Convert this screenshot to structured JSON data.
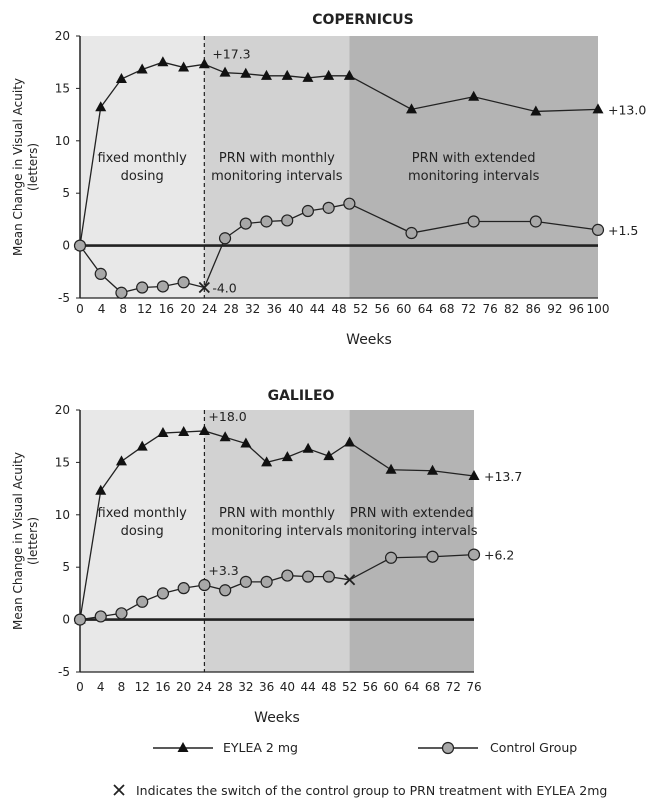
{
  "chart_data": [
    {
      "type": "line",
      "title": "COPERNICUS",
      "ylabel": "Mean Change in Visual Acuity",
      "ylabel2": "(letters)",
      "xlabel": "Weeks",
      "ylim": [
        -5,
        20
      ],
      "yticks": [
        "20",
        "15",
        "10",
        "5",
        "0",
        "-5"
      ],
      "xticks": [
        "0",
        "4",
        "8",
        "12",
        "16",
        "20",
        "24",
        "28",
        "32",
        "36",
        "40",
        "44",
        "48",
        "52",
        "56",
        "60",
        "64",
        "68",
        "72",
        "76",
        "82",
        "86",
        "92",
        "96",
        "100"
      ],
      "phases": [
        {
          "label1": "fixed monthly",
          "label2": "dosing",
          "x_start": 0,
          "x_end": 24,
          "color": "#e8e8e8"
        },
        {
          "label1": "PRN with monthly",
          "label2": "monitoring intervals",
          "x_start": 24,
          "x_end": 52,
          "color": "#d2d2d2"
        },
        {
          "label1": "PRN with extended",
          "label2": "monitoring intervals",
          "x_start": 52,
          "x_end": 100,
          "color": "#b4b4b4"
        }
      ],
      "series": [
        {
          "name": "EYLEA 2 mg",
          "marker": "triangle",
          "x": [
            0,
            4,
            8,
            12,
            16,
            20,
            24,
            28,
            32,
            36,
            40,
            44,
            48,
            52,
            64,
            76,
            88,
            100
          ],
          "y": [
            0,
            13.2,
            15.9,
            16.8,
            17.5,
            17.0,
            17.3,
            16.5,
            16.4,
            16.2,
            16.2,
            16.0,
            16.2,
            16.2,
            13.0,
            14.2,
            12.8,
            13.0
          ]
        },
        {
          "name": "Control Group",
          "marker": "circle",
          "x": [
            0,
            4,
            8,
            12,
            16,
            20,
            24,
            28,
            32,
            36,
            40,
            44,
            48,
            52,
            64,
            76,
            88,
            100
          ],
          "y": [
            0,
            -2.7,
            -4.5,
            -4.0,
            -3.9,
            -3.5,
            -4.0,
            0.7,
            2.1,
            2.3,
            2.4,
            3.3,
            3.6,
            4.0,
            1.2,
            2.3,
            2.3,
            1.5
          ]
        }
      ],
      "switch_point": {
        "x": 24,
        "y": -4.0
      },
      "annotations": [
        {
          "text": "+17.3",
          "x": 24,
          "y": 17.3
        },
        {
          "text": "-4.0",
          "x": 24,
          "y": -4.0
        },
        {
          "text": "+13.0",
          "x": 100,
          "y": 13.0
        },
        {
          "text": "+1.5",
          "x": 100,
          "y": 1.5
        }
      ]
    },
    {
      "type": "line",
      "title": "GALILEO",
      "ylabel": "Mean Change in Visual Acuity",
      "ylabel2": "(letters)",
      "xlabel": "Weeks",
      "ylim": [
        -5,
        20
      ],
      "yticks": [
        "20",
        "15",
        "10",
        "5",
        "0",
        "-5"
      ],
      "xticks": [
        "0",
        "4",
        "8",
        "12",
        "16",
        "20",
        "24",
        "28",
        "32",
        "36",
        "40",
        "44",
        "48",
        "52",
        "56",
        "60",
        "64",
        "68",
        "72",
        "76"
      ],
      "phases": [
        {
          "label1": "fixed monthly",
          "label2": "dosing",
          "x_start": 0,
          "x_end": 24,
          "color": "#e8e8e8"
        },
        {
          "label1": "PRN with monthly",
          "label2": "monitoring intervals",
          "x_start": 24,
          "x_end": 52,
          "color": "#d2d2d2"
        },
        {
          "label1": "PRN with extended",
          "label2": "monitoring intervals",
          "x_start": 52,
          "x_end": 76,
          "color": "#b4b4b4"
        }
      ],
      "series": [
        {
          "name": "EYLEA 2 mg",
          "marker": "triangle",
          "x": [
            0,
            4,
            8,
            12,
            16,
            20,
            24,
            28,
            32,
            36,
            40,
            44,
            48,
            52,
            60,
            68,
            76
          ],
          "y": [
            0,
            12.3,
            15.1,
            16.5,
            17.8,
            17.9,
            18.0,
            17.4,
            16.8,
            15.0,
            15.5,
            16.3,
            15.6,
            16.9,
            14.3,
            14.2,
            13.7
          ]
        },
        {
          "name": "Control Group",
          "marker": "circle",
          "x": [
            0,
            4,
            8,
            12,
            16,
            20,
            24,
            28,
            32,
            36,
            40,
            44,
            48,
            52,
            60,
            68,
            76
          ],
          "y": [
            0,
            0.3,
            0.6,
            1.7,
            2.5,
            3.0,
            3.3,
            2.8,
            3.6,
            3.6,
            4.2,
            4.1,
            4.1,
            3.8,
            5.9,
            6.0,
            6.2
          ]
        }
      ],
      "switch_point": {
        "x": 52,
        "y": 3.8
      },
      "annotations": [
        {
          "text": "+18.0",
          "x": 24,
          "y": 18.0
        },
        {
          "text": "+3.3",
          "x": 24,
          "y": 3.3
        },
        {
          "text": "+13.7",
          "x": 76,
          "y": 13.7
        },
        {
          "text": "+6.2",
          "x": 76,
          "y": 6.2
        }
      ]
    }
  ],
  "legend": {
    "eylea": "EYLEA 2 mg",
    "control": "Control Group",
    "switch_note": "Indicates the switch of the control group to PRN treatment with EYLEA 2mg"
  },
  "colors": {
    "line": "#222222",
    "marker_fill_circle": "#a8a8a8",
    "marker_fill_triangle": "#111111"
  }
}
